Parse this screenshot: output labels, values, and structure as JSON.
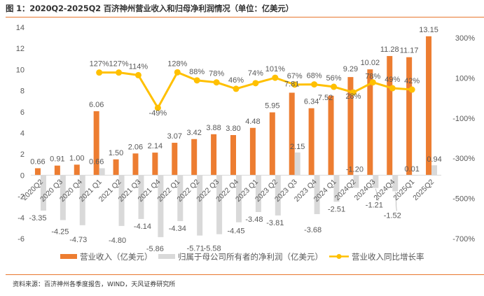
{
  "header": {
    "title": "图 1：2020Q2-2025Q2 百济神州营业收入和归母净利润情况（单位：亿美元）"
  },
  "footer": {
    "source": "资料来源：百济神州各季度报告，WIND，天风证券研究所"
  },
  "colors": {
    "revenue": "#ed7d31",
    "net_profit": "#d9d9d9",
    "growth": "#ffc000",
    "rule": "#e8772e",
    "text": "#595959"
  },
  "chart_data": {
    "type": "bar",
    "title": "2020Q2-2025Q2 百济神州营业收入和归母净利润情况（单位：亿美元）",
    "categories": [
      "2020Q2",
      "2020 Q3",
      "2020 Q4",
      "2021 Q1",
      "2021 Q2",
      "2021 Q3",
      "2021 Q4",
      "2022 Q1",
      "2022 Q2",
      "2022 Q3",
      "2022 Q4",
      "2023 Q1",
      "2023 Q2",
      "2023 Q3",
      "2023 Q4",
      "2024 Q1",
      "2024Q2",
      "2024Q3",
      "2024Q4",
      "2025Q1",
      "2025Q2"
    ],
    "series": [
      {
        "name": "营业收入（亿美元）",
        "type": "bar",
        "axis": "left",
        "values": [
          0.66,
          0.91,
          1.0,
          6.06,
          1.5,
          2.06,
          2.14,
          3.07,
          3.42,
          3.88,
          3.8,
          4.48,
          5.95,
          7.81,
          6.34,
          7.52,
          9.29,
          10.02,
          11.28,
          11.17,
          13.15
        ],
        "labels": [
          "0.66",
          "0.91",
          "1.00",
          "6.06",
          "1.50",
          "2.06",
          "2.14",
          "3.07",
          "3.42",
          "3.88",
          "3.80",
          "4.48",
          "5.95",
          "7.81",
          "6.34",
          "7.52",
          "9.29",
          "10.02",
          "11.28",
          "11.17",
          "13.15"
        ]
      },
      {
        "name": "归属于母公司所有者的净利润（亿美元）",
        "type": "bar",
        "axis": "left",
        "values": [
          -3.35,
          -4.25,
          -4.73,
          0.66,
          -4.8,
          -4.14,
          -5.86,
          -4.34,
          -5.71,
          -5.58,
          -4.45,
          -3.48,
          -3.81,
          2.15,
          -3.68,
          -2.51,
          -1.2,
          -1.21,
          -1.52,
          0.01,
          0.94
        ],
        "labels": [
          "-3.35",
          "-4.25",
          "-4.73",
          "0.66",
          "-4.80",
          "-4.14",
          "-5.86",
          "-4.34",
          "-5.71",
          "-5.58",
          "-4.45",
          "-3.48",
          "-3.81",
          "2.15",
          "-3.68",
          "-2.51",
          "-1.20",
          "-1.21",
          "-1.52",
          "0.01",
          "0.94"
        ]
      },
      {
        "name": "营业收入同比增长率",
        "type": "line",
        "axis": "right",
        "values": [
          null,
          null,
          null,
          127,
          127,
          114,
          -49,
          128,
          88,
          78,
          46,
          74,
          101,
          67,
          68,
          56,
          28,
          78,
          49,
          42,
          null
        ],
        "labels": [
          null,
          null,
          null,
          "127%",
          "127%",
          "114%",
          "-49%",
          "128%",
          "88%",
          "78%",
          "46%",
          "74%",
          "101%",
          "67%",
          "68%",
          "56%",
          "28%",
          "78%",
          "49%",
          "42%",
          null
        ]
      }
    ],
    "y_left": {
      "ylim": [
        -6,
        14
      ],
      "ticks": [
        "14",
        "12",
        "10",
        "8",
        "6",
        "4",
        "2",
        "0",
        "-2",
        "-4",
        "-6"
      ],
      "tick_values": [
        14,
        12,
        10,
        8,
        6,
        4,
        2,
        0,
        -2,
        -4,
        -6
      ]
    },
    "y_right": {
      "ylim": [
        -700,
        300
      ],
      "ticks": [
        "300%",
        "100%",
        "-100%",
        "-300%",
        "-500%",
        "-700%"
      ],
      "tick_values": [
        300,
        100,
        -100,
        -300,
        -500,
        -700
      ]
    },
    "xlabel": "",
    "ylabel": "",
    "grid": false,
    "legend": {
      "position": "bottom",
      "entries": [
        {
          "label": "营业收入（亿美元）",
          "marker": "bar"
        },
        {
          "label": "归属于母公司所有者的净利润（亿美元）",
          "marker": "bar"
        },
        {
          "label": "营业收入同比增长率",
          "marker": "line-dot"
        }
      ]
    }
  }
}
